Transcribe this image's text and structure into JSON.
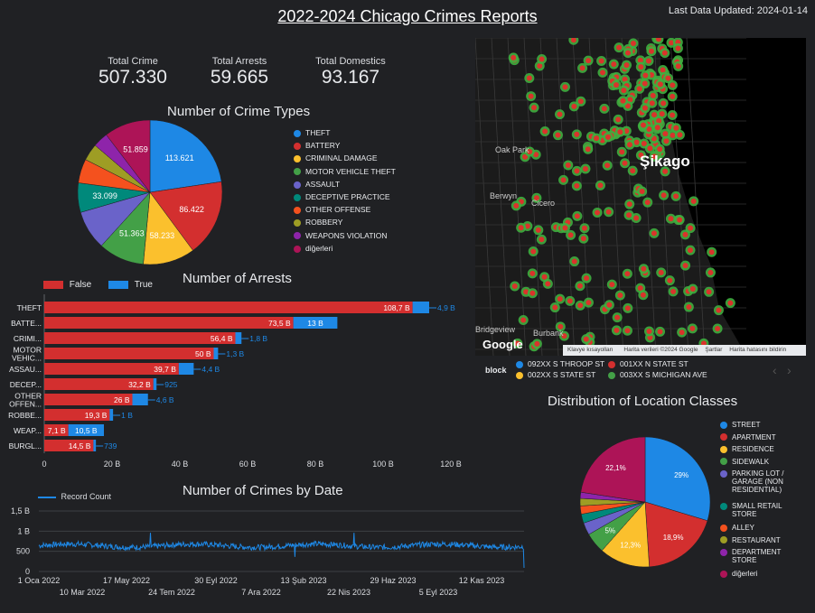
{
  "title": "2022-2024 Chicago Crimes Reports",
  "last_updated": "Last Data Updated: 2024-01-14",
  "kpis": [
    {
      "label": "Total Crime",
      "value": "507.330"
    },
    {
      "label": "Total Arrests",
      "value": "59.665"
    },
    {
      "label": "Total Domestics",
      "value": "93.167"
    }
  ],
  "colors": {
    "blue": "#1e88e5",
    "red": "#d32f2f",
    "yellow": "#fbc02d",
    "green": "#43a047",
    "purple": "#6a63c9",
    "teal": "#00897b",
    "orange": "#f4511e",
    "olive": "#9e9d24",
    "violet": "#8e24aa",
    "magenta": "#ad1457"
  },
  "map": {
    "labels": [
      "Oak Park",
      "Şikago",
      "Berwyn",
      "Cicero",
      "Bridgeview",
      "Burbank"
    ],
    "logo": "Google",
    "footer": [
      "Klavye kısayolları",
      "Harita verileri ©2024 Google",
      "Şartlar",
      "Harita hatasını bildirin"
    ],
    "legend_title": "block",
    "legend": [
      {
        "label": "092XX S THROOP ST",
        "color": "#1e88e5"
      },
      {
        "label": "001XX N STATE ST",
        "color": "#d32f2f"
      },
      {
        "label": "002XX S STATE ST",
        "color": "#fbc02d"
      },
      {
        "label": "003XX S MICHIGAN AVE",
        "color": "#43a047"
      }
    ]
  },
  "chart_data": [
    {
      "type": "pie",
      "title": "Number of Crime Types",
      "labels": [
        "THEFT",
        "BATTERY",
        "CRIMINAL DAMAGE",
        "MOTOR VEHICLE THEFT",
        "ASSAULT",
        "DECEPTIVE PRACTICE",
        "OTHER OFFENSE",
        "ROBBERY",
        "WEAPONS VIOLATION",
        "diğerleri"
      ],
      "values": [
        113621,
        86422,
        58233,
        51363,
        44000,
        33099,
        27000,
        19000,
        17000,
        51859
      ],
      "display": [
        "113.621",
        "86.422",
        "58.233",
        "51.363",
        "",
        "33.099",
        "",
        "",
        "",
        "51.859"
      ],
      "colors": [
        "#1e88e5",
        "#d32f2f",
        "#fbc02d",
        "#43a047",
        "#6a63c9",
        "#00897b",
        "#f4511e",
        "#9e9d24",
        "#8e24aa",
        "#ad1457"
      ],
      "legend_position": "right"
    },
    {
      "type": "bar",
      "orientation": "horizontal",
      "stacked": true,
      "title": "Number of Arrests",
      "categories": [
        "THEFT",
        "BATTE...",
        "CRIMI...",
        "MOTOR VEHIC...",
        "ASSAU...",
        "DECEP...",
        "OTHER OFFEN...",
        "ROBBE...",
        "WEAP...",
        "BURGL..."
      ],
      "series": [
        {
          "name": "False",
          "color": "#d32f2f",
          "values": [
            108.7,
            73.5,
            56.4,
            50,
            39.7,
            32.2,
            26,
            19.3,
            7.1,
            14.5
          ],
          "labels": [
            "108,7 B",
            "73,5 B",
            "56,4 B",
            "50 B",
            "39,7 B",
            "32,2 B",
            "26 B",
            "19,3 B",
            "7,1 B",
            "14,5 B"
          ]
        },
        {
          "name": "True",
          "color": "#1e88e5",
          "values": [
            4.9,
            13,
            1.8,
            1.3,
            4.4,
            0.925,
            4.6,
            1,
            10.5,
            0.739
          ],
          "labels": [
            "4,9 B",
            "13 B",
            "1,8 B",
            "1,3 B",
            "4,4 B",
            "925",
            "4,6 B",
            "1 B",
            "10,5 B",
            "739"
          ]
        }
      ],
      "xlim": [
        0,
        120
      ],
      "xticks": [
        "0",
        "20 B",
        "40 B",
        "60 B",
        "80 B",
        "100 B",
        "120 B"
      ],
      "legend_position": "top-left"
    },
    {
      "type": "line",
      "title": "Number of Crimes by Date",
      "series": [
        {
          "name": "Record Count",
          "color": "#1e88e5",
          "mean": 640,
          "final": 90
        }
      ],
      "x_range": [
        "2022-01-01",
        "2024-01-14"
      ],
      "ylim": [
        0,
        1500
      ],
      "yticks": [
        "0",
        "500",
        "1 B",
        "1,5 B"
      ],
      "xticks_top": [
        "1 Oca 2022",
        "17 May 2022",
        "30 Eyl 2022",
        "13 Şub 2023",
        "29 Haz 2023",
        "12 Kas 2023"
      ],
      "xticks_bottom": [
        "10 Mar 2022",
        "24 Tem 2022",
        "7 Ara 2022",
        "22 Nis 2023",
        "5 Eyl 2023"
      ],
      "legend_position": "top-left"
    },
    {
      "type": "pie",
      "title": "Distribution of Location Classes",
      "labels": [
        "STREET",
        "APARTMENT",
        "RESIDENCE",
        "SIDEWALK",
        "PARKING LOT / GARAGE (NON RESIDENTIAL)",
        "SMALL RETAIL STORE",
        "ALLEY",
        "RESTAURANT",
        "DEPARTMENT STORE",
        "diğerleri"
      ],
      "values": [
        29,
        18.9,
        12.3,
        5,
        3,
        2.2,
        2,
        1.8,
        1.5,
        22.1
      ],
      "display": [
        "29%",
        "18,9%",
        "12,3%",
        "5%",
        "",
        "",
        "",
        "",
        "",
        "22,1%"
      ],
      "colors": [
        "#1e88e5",
        "#d32f2f",
        "#fbc02d",
        "#43a047",
        "#6a63c9",
        "#00897b",
        "#f4511e",
        "#9e9d24",
        "#8e24aa",
        "#ad1457"
      ],
      "legend_position": "right"
    }
  ]
}
